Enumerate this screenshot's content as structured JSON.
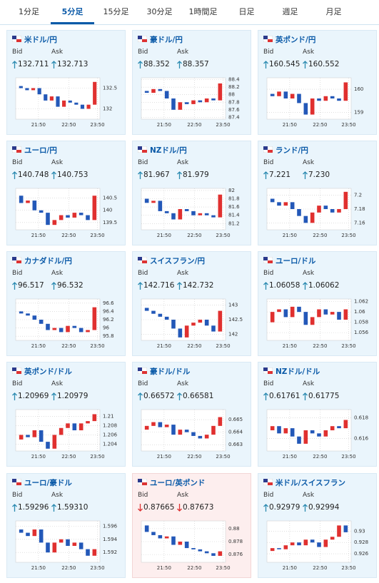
{
  "tabs": [
    "1分足",
    "5分足",
    "15分足",
    "30分足",
    "1時間足",
    "日足",
    "週足",
    "月足"
  ],
  "active_tab": 1,
  "labels": {
    "bid": "Bid",
    "ask": "Ask"
  },
  "time_labels": [
    "21:50",
    "22:50",
    "23:50"
  ],
  "cards": [
    {
      "pair": "米ドル/円",
      "trend": "up",
      "bid": "132.711",
      "ask": "132.713",
      "ylim": [
        131.75,
        132.75
      ],
      "yticks": [
        132.5,
        132
      ],
      "closes": [
        132.55,
        132.5,
        132.45,
        132.5,
        132.35,
        132.2,
        132.3,
        132.05,
        132.2,
        132.15,
        132.1,
        132.0,
        132.1,
        132.65
      ]
    },
    {
      "pair": "豪ドル/円",
      "trend": "up",
      "bid": "88.352",
      "ask": "88.357",
      "ylim": [
        87.35,
        88.45
      ],
      "yticks": [
        88.4,
        88.2,
        88,
        87.8,
        87.6,
        87.4
      ],
      "closes": [
        88.1,
        88.05,
        88.15,
        88.1,
        87.9,
        87.6,
        87.8,
        87.75,
        87.85,
        87.8,
        87.9,
        87.85,
        88.3
      ]
    },
    {
      "pair": "英ポンド/円",
      "trend": "up",
      "bid": "160.545",
      "ask": "160.552",
      "ylim": [
        158.7,
        160.5
      ],
      "yticks": [
        160,
        159
      ],
      "closes": [
        159.8,
        159.7,
        159.9,
        159.6,
        159.8,
        159.4,
        158.9,
        159.6,
        159.5,
        159.7,
        159.6,
        159.5,
        160.3
      ]
    },
    {
      "pair": "ユーロ/円",
      "trend": "up",
      "bid": "140.748",
      "ask": "140.753",
      "ylim": [
        139.2,
        140.9
      ],
      "yticks": [
        140.5,
        140,
        139.5
      ],
      "closes": [
        140.6,
        140.3,
        140.4,
        140.0,
        139.9,
        139.4,
        139.6,
        139.8,
        139.7,
        139.9,
        139.8,
        139.6,
        140.6
      ]
    },
    {
      "pair": "NZドル/円",
      "trend": "up",
      "bid": "81.967",
      "ask": "81.979",
      "ylim": [
        81.05,
        82.05
      ],
      "yticks": [
        82,
        81.8,
        81.6,
        81.4,
        81.2
      ],
      "closes": [
        81.8,
        81.7,
        81.75,
        81.5,
        81.45,
        81.3,
        81.55,
        81.5,
        81.4,
        81.45,
        81.4,
        81.35,
        81.9
      ]
    },
    {
      "pair": "ランド/円",
      "trend": "up",
      "bid": "7.221",
      "ask": "7.230",
      "ylim": [
        7.15,
        7.21
      ],
      "yticks": [
        7.2,
        7.18,
        7.16
      ],
      "closes": [
        7.195,
        7.19,
        7.185,
        7.19,
        7.18,
        7.17,
        7.16,
        7.175,
        7.185,
        7.18,
        7.175,
        7.18,
        7.205
      ]
    },
    {
      "pair": "カナダドル/円",
      "trend": "up",
      "bid": "96.517",
      "ask": "96.532",
      "ylim": [
        95.7,
        96.7
      ],
      "yticks": [
        96.6,
        96.4,
        96.2,
        96,
        95.8
      ],
      "closes": [
        96.4,
        96.35,
        96.3,
        96.2,
        96.1,
        95.95,
        96.0,
        95.9,
        96.05,
        96.0,
        95.9,
        95.95,
        96.5
      ]
    },
    {
      "pair": "スイスフラン/円",
      "trend": "up",
      "bid": "142.716",
      "ask": "142.732",
      "ylim": [
        141.8,
        143.2
      ],
      "yticks": [
        143,
        142.5,
        142
      ],
      "closes": [
        142.9,
        142.8,
        142.7,
        142.6,
        142.5,
        142.2,
        141.9,
        142.3,
        142.4,
        142.5,
        142.3,
        142.1,
        142.8
      ]
    },
    {
      "pair": "ユーロ/ドル",
      "trend": "up",
      "bid": "1.06058",
      "ask": "1.06062",
      "ylim": [
        1.0545,
        1.0625
      ],
      "yticks": [
        1.062,
        1.06,
        1.058,
        1.056
      ],
      "closes": [
        1.058,
        1.06,
        1.0605,
        1.059,
        1.061,
        1.06,
        1.0575,
        1.059,
        1.0605,
        1.0595,
        1.06,
        1.0585,
        1.0605
      ]
    },
    {
      "pair": "英ポンド/ドル",
      "trend": "up",
      "bid": "1.20969",
      "ask": "1.20979",
      "ylim": [
        1.2025,
        1.2115
      ],
      "yticks": [
        1.21,
        1.208,
        1.206,
        1.204
      ],
      "closes": [
        1.205,
        1.206,
        1.2055,
        1.207,
        1.2045,
        1.203,
        1.206,
        1.2075,
        1.2085,
        1.207,
        1.2085,
        1.209,
        1.2105
      ]
    },
    {
      "pair": "豪ドル/ドル",
      "trend": "up",
      "bid": "0.66572",
      "ask": "0.66581",
      "ylim": [
        0.6625,
        0.6658
      ],
      "yticks": [
        0.665,
        0.664,
        0.663
      ],
      "closes": [
        0.6642,
        0.6645,
        0.6648,
        0.6644,
        0.6646,
        0.6638,
        0.6642,
        0.664,
        0.6637,
        0.6635,
        0.6638,
        0.6645,
        0.6652
      ]
    },
    {
      "pair": "NZドル/ドル",
      "trend": "up",
      "bid": "0.61761",
      "ask": "0.61775",
      "ylim": [
        0.6148,
        0.6188
      ],
      "yticks": [
        0.618,
        0.616
      ],
      "closes": [
        0.6168,
        0.6172,
        0.6165,
        0.617,
        0.6162,
        0.6155,
        0.6168,
        0.6165,
        0.6162,
        0.6168,
        0.6172,
        0.617,
        0.6178
      ]
    },
    {
      "pair": "ユーロ/豪ドル",
      "trend": "up",
      "bid": "1.59296",
      "ask": "1.59310",
      "ylim": [
        1.5905,
        1.5968
      ],
      "yticks": [
        1.596,
        1.594,
        1.592
      ],
      "closes": [
        1.5955,
        1.595,
        1.5945,
        1.5955,
        1.5935,
        1.592,
        1.5935,
        1.594,
        1.593,
        1.5935,
        1.5925,
        1.5915,
        1.5925
      ]
    },
    {
      "pair": "ユーロ/英ポンド",
      "trend": "down",
      "bid": "0.87665",
      "ask": "0.87673",
      "ylim": [
        0.8748,
        0.8812
      ],
      "yticks": [
        0.88,
        0.878,
        0.876
      ],
      "closes": [
        0.8805,
        0.8795,
        0.879,
        0.8785,
        0.8788,
        0.8775,
        0.878,
        0.877,
        0.8768,
        0.8765,
        0.8762,
        0.8758,
        0.8765
      ]
    },
    {
      "pair": "米ドル/スイスフラン",
      "trend": "up",
      "bid": "0.92979",
      "ask": "0.92994",
      "ylim": [
        0.9245,
        0.9318
      ],
      "yticks": [
        0.93,
        0.928,
        0.926
      ],
      "closes": [
        0.9265,
        0.927,
        0.9268,
        0.9275,
        0.928,
        0.9275,
        0.9285,
        0.928,
        0.9272,
        0.9285,
        0.929,
        0.931,
        0.9298
      ]
    }
  ]
}
